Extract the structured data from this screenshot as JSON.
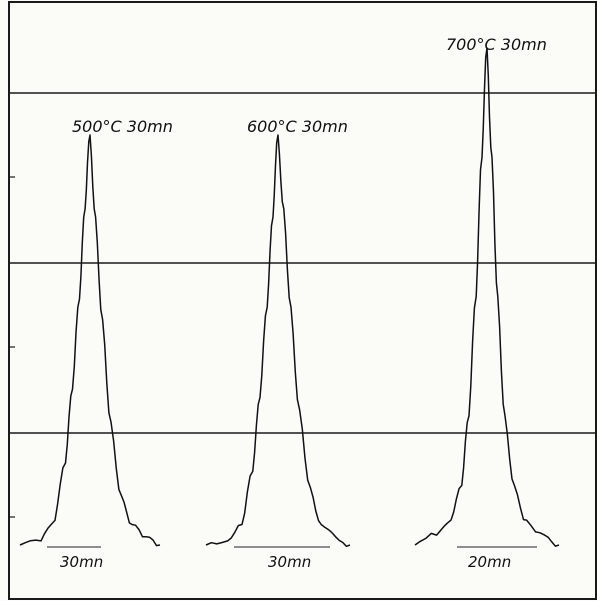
{
  "chart_data": {
    "type": "line",
    "title": "",
    "xlabel": "",
    "ylabel": "",
    "grid": "horizontal lines",
    "ylim": [
      0,
      1
    ],
    "series": [
      {
        "name": "500°C 30mn",
        "scale_label": "30mn",
        "x": [
          -1.0,
          -0.7,
          -0.5,
          -0.35,
          -0.25,
          -0.15,
          -0.07,
          0.0,
          0.08,
          0.18,
          0.3,
          0.45,
          0.6,
          0.8,
          1.0
        ],
        "y": [
          0.0,
          0.01,
          0.06,
          0.2,
          0.38,
          0.6,
          0.82,
          1.0,
          0.8,
          0.55,
          0.3,
          0.12,
          0.05,
          0.02,
          0.0
        ]
      },
      {
        "name": "600°C 30mn",
        "scale_label": "30mn",
        "x": [
          -1.0,
          -0.7,
          -0.5,
          -0.35,
          -0.25,
          -0.15,
          -0.07,
          0.0,
          0.08,
          0.18,
          0.3,
          0.45,
          0.6,
          0.8,
          1.0
        ],
        "y": [
          0.0,
          0.01,
          0.05,
          0.18,
          0.36,
          0.58,
          0.8,
          1.0,
          0.82,
          0.58,
          0.33,
          0.14,
          0.05,
          0.02,
          0.0
        ]
      },
      {
        "name": "700°C 30mn",
        "scale_label": "20mn",
        "x": [
          -1.0,
          -0.7,
          -0.5,
          -0.35,
          -0.25,
          -0.15,
          -0.07,
          0.0,
          0.07,
          0.15,
          0.25,
          0.38,
          0.55,
          0.8,
          1.0
        ],
        "y": [
          0.0,
          0.02,
          0.05,
          0.12,
          0.26,
          0.5,
          0.78,
          1.0,
          0.78,
          0.5,
          0.26,
          0.12,
          0.05,
          0.02,
          0.0
        ]
      }
    ]
  }
}
